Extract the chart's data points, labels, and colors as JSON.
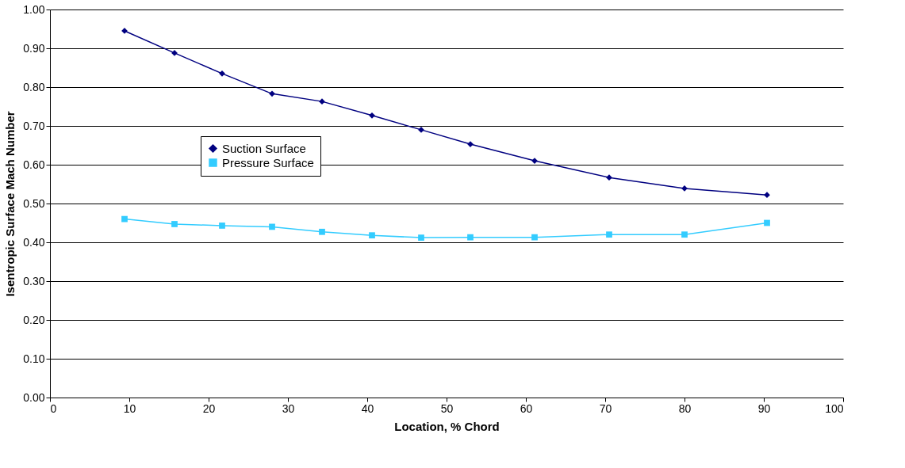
{
  "chart_data": {
    "type": "line",
    "xlabel": "Location, % Chord",
    "ylabel": "Isentropic Surface Mach Number",
    "xlim": [
      0,
      100
    ],
    "xticks": [
      0,
      10,
      20,
      30,
      40,
      50,
      60,
      70,
      80,
      90,
      100
    ],
    "ylim": [
      0,
      1
    ],
    "yticks": [
      {
        "value": 0,
        "label": "0.00"
      },
      {
        "value": 0.1,
        "label": "0.10"
      },
      {
        "value": 0.2,
        "label": "0.20"
      },
      {
        "value": 0.3,
        "label": "0.30"
      },
      {
        "value": 0.4,
        "label": "0.40"
      },
      {
        "value": 0.5,
        "label": "0.50"
      },
      {
        "value": 0.6,
        "label": "0.60"
      },
      {
        "value": 0.7,
        "label": "0.70"
      },
      {
        "value": 0.8,
        "label": "0.80"
      },
      {
        "value": 0.9,
        "label": "0.90"
      },
      {
        "value": 1,
        "label": "1.00"
      }
    ],
    "x": [
      9.4,
      15.7,
      21.7,
      28.0,
      34.3,
      40.6,
      46.8,
      53.0,
      61.1,
      70.5,
      80.0,
      90.4
    ],
    "grid": "y",
    "legend": "left",
    "line_style": "solid",
    "series": [
      {
        "name": "Suction Surface",
        "color": "#000080",
        "marker": "diamond",
        "values": [
          0.945,
          0.888,
          0.835,
          0.783,
          0.763,
          0.727,
          0.69,
          0.653,
          0.61,
          0.567,
          0.539,
          0.522
        ]
      },
      {
        "name": "Pressure Surface",
        "color": "#33ccff",
        "marker": "square",
        "values": [
          0.46,
          0.447,
          0.443,
          0.44,
          0.427,
          0.418,
          0.412,
          0.413,
          0.413,
          0.42,
          0.42,
          0.45
        ]
      }
    ]
  }
}
